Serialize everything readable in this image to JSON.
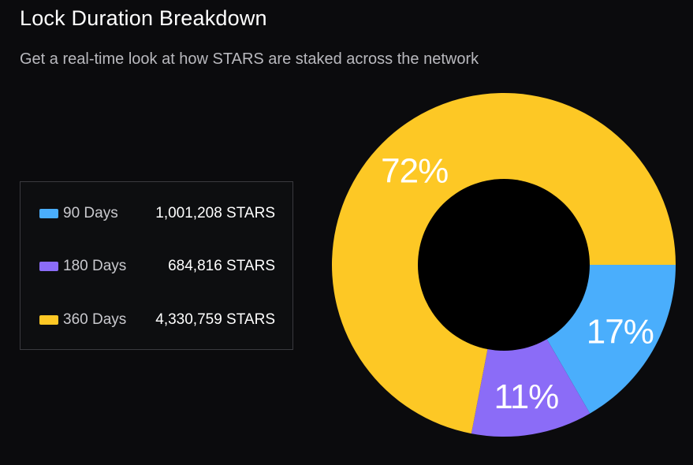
{
  "header": {
    "title": "Lock Duration Breakdown",
    "subtitle": "Get a real-time look at how STARS are staked across the network"
  },
  "legend": {
    "items": [
      {
        "label": "90 Days",
        "value": "1,001,208 STARS",
        "color": "#4aaefc"
      },
      {
        "label": "180 Days",
        "value": "684,816 STARS",
        "color": "#8b6cf7"
      },
      {
        "label": "360 Days",
        "value": "4,330,759 STARS",
        "color": "#fdc825"
      }
    ]
  },
  "chart_data": {
    "type": "pie",
    "variant": "donut",
    "categories": [
      "90 Days",
      "180 Days",
      "360 Days"
    ],
    "values": [
      1001208,
      684816,
      4330759
    ],
    "unit": "STARS",
    "percent_labels": [
      "17%",
      "11%",
      "72%"
    ],
    "colors": [
      "#4aaefc",
      "#8b6cf7",
      "#fdc825"
    ],
    "hole_color": "#000000"
  }
}
